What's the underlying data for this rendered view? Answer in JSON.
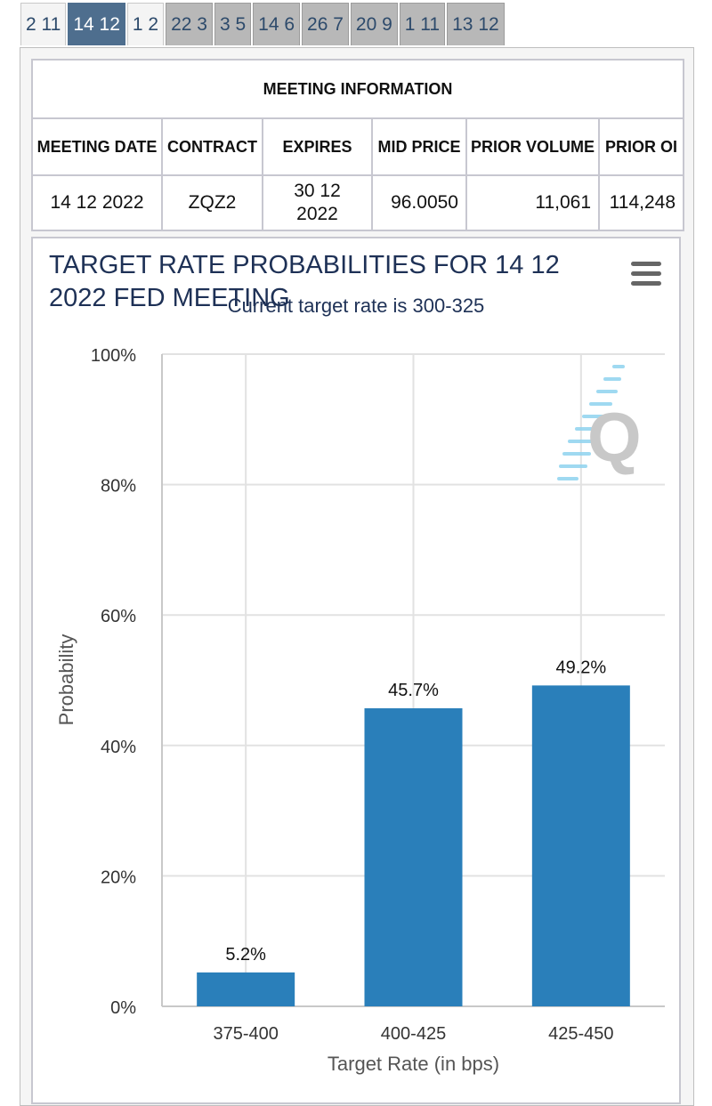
{
  "tabs": [
    {
      "label": "2 11",
      "style": "light"
    },
    {
      "label": "14 12",
      "style": "active"
    },
    {
      "label": "1 2",
      "style": "light"
    },
    {
      "label": "22 3",
      "style": "grey"
    },
    {
      "label": "3 5",
      "style": "grey"
    },
    {
      "label": "14 6",
      "style": "grey"
    },
    {
      "label": "26 7",
      "style": "grey"
    },
    {
      "label": "20 9",
      "style": "grey"
    },
    {
      "label": "1 11",
      "style": "grey"
    },
    {
      "label": "13 12",
      "style": "grey"
    }
  ],
  "info_table": {
    "caption": "MEETING INFORMATION",
    "headers": [
      "MEETING DATE",
      "CONTRACT",
      "EXPIRES",
      "MID PRICE",
      "PRIOR VOLUME",
      "PRIOR OI"
    ],
    "row": [
      "14 12 2022",
      "ZQZ2",
      "30 12 2022",
      "96.0050",
      "11,061",
      "114,248"
    ]
  },
  "colors": {
    "bar": "#2a7fba",
    "title": "#1e3156",
    "tab_active": "#4e6e8e",
    "watermark_blue": "#8fd3ef",
    "watermark_grey": "#c8c8c8"
  },
  "menu_icon": "hamburger-menu-icon",
  "watermark_text": "Q",
  "chart_data": {
    "type": "bar",
    "title": "TARGET RATE PROBABILITIES FOR 14 12 2022 FED MEETING",
    "subtitle": "Current target rate is 300-325",
    "xlabel": "Target Rate (in bps)",
    "ylabel": "Probability",
    "categories": [
      "375-400",
      "400-425",
      "425-450"
    ],
    "values": [
      5.2,
      45.7,
      49.2
    ],
    "data_labels": [
      "5.2%",
      "45.7%",
      "49.2%"
    ],
    "ylim": [
      0,
      100
    ],
    "yticks": [
      0,
      20,
      40,
      60,
      80,
      100
    ],
    "ytick_labels": [
      "0%",
      "20%",
      "40%",
      "60%",
      "80%",
      "100%"
    ],
    "grid": true,
    "legend": "none"
  }
}
